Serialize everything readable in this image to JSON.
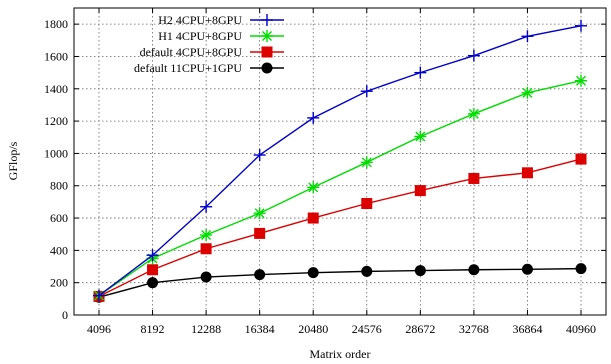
{
  "chart_data": {
    "type": "line",
    "title": "",
    "xlabel": "Matrix order",
    "ylabel": "GFlop/s",
    "x": [
      4096,
      8192,
      12288,
      16384,
      20480,
      24576,
      28672,
      32768,
      36864,
      40960
    ],
    "xtick_labels": [
      "4096",
      "8192",
      "12288",
      "16384",
      "20480",
      "24576",
      "28672",
      "32768",
      "36864",
      "40960"
    ],
    "ylim": [
      0,
      1900
    ],
    "yticks": [
      0,
      200,
      400,
      600,
      800,
      1000,
      1200,
      1400,
      1600,
      1800
    ],
    "ytick_labels": [
      "0",
      "200",
      "400",
      "600",
      "800",
      "1000",
      "1200",
      "1400",
      "1600",
      "1800"
    ],
    "grid": true,
    "legend_position": "top-right",
    "series": [
      {
        "name": "H2 4CPU+8GPU",
        "color": "#0000cc",
        "marker": "plus",
        "values": [
          120,
          370,
          670,
          990,
          1220,
          1385,
          1500,
          1605,
          1725,
          1790
        ]
      },
      {
        "name": "H1 4CPU+8GPU",
        "color": "#00dd00",
        "marker": "star",
        "values": [
          120,
          350,
          495,
          630,
          790,
          945,
          1105,
          1245,
          1375,
          1450
        ]
      },
      {
        "name": "default 4CPU+8GPU",
        "color": "#dd0000",
        "marker": "square",
        "values": [
          115,
          280,
          410,
          505,
          600,
          690,
          770,
          845,
          880,
          965
        ]
      },
      {
        "name": "default 11CPU+1GPU",
        "color": "#000000",
        "marker": "circle",
        "values": [
          110,
          200,
          235,
          250,
          262,
          270,
          275,
          280,
          283,
          287
        ]
      }
    ]
  }
}
